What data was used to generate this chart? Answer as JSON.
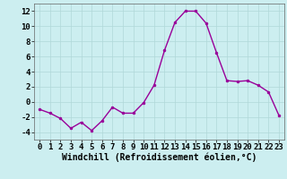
{
  "x": [
    0,
    1,
    2,
    3,
    4,
    5,
    6,
    7,
    8,
    9,
    10,
    11,
    12,
    13,
    14,
    15,
    16,
    17,
    18,
    19,
    20,
    21,
    22,
    23
  ],
  "y": [
    -1,
    -1.5,
    -2.2,
    -3.5,
    -2.7,
    -3.8,
    -2.5,
    -0.7,
    -1.5,
    -1.5,
    -0.1,
    2.2,
    6.8,
    10.5,
    12.0,
    12.0,
    10.4,
    6.5,
    2.8,
    2.7,
    2.8,
    2.2,
    1.3,
    -1.8
  ],
  "line_color": "#990099",
  "marker": "o",
  "marker_size": 2.0,
  "line_width": 1.0,
  "xlabel": "Windchill (Refroidissement éolien,°C)",
  "xlabel_fontsize": 7,
  "ylim": [
    -5,
    13
  ],
  "xlim": [
    -0.5,
    23.5
  ],
  "yticks": [
    -4,
    -2,
    0,
    2,
    4,
    6,
    8,
    10,
    12
  ],
  "xticks": [
    0,
    1,
    2,
    3,
    4,
    5,
    6,
    7,
    8,
    9,
    10,
    11,
    12,
    13,
    14,
    15,
    16,
    17,
    18,
    19,
    20,
    21,
    22,
    23
  ],
  "grid_color": "#b0d8d8",
  "background_color": "#cceef0",
  "tick_fontsize": 6.5,
  "fig_bg": "#cceef0"
}
